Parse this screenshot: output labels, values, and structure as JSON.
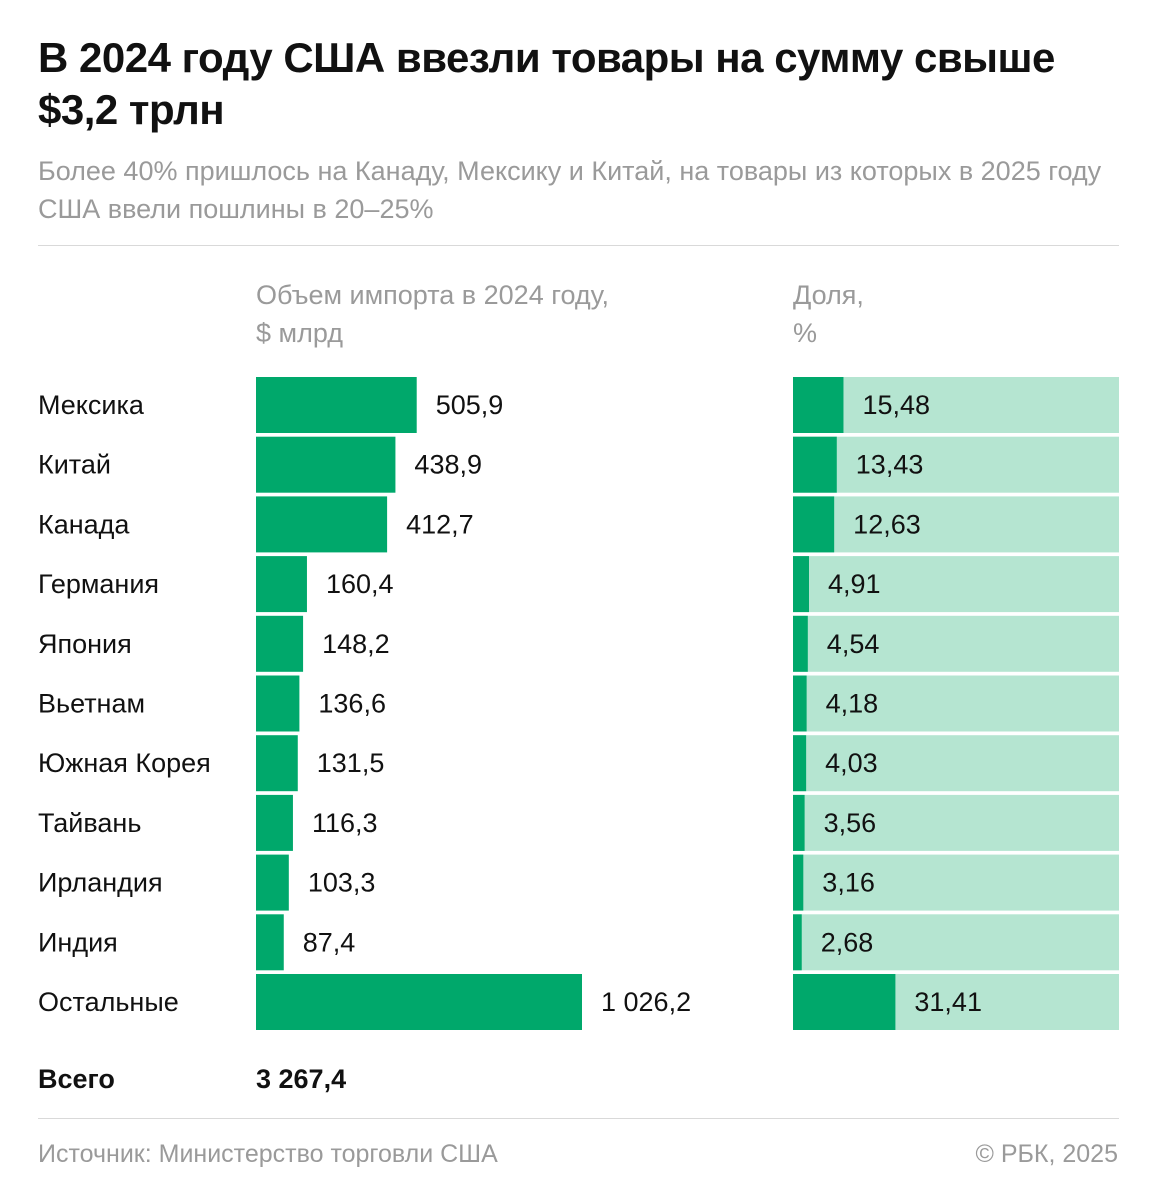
{
  "title": "В 2024 году США ввезли товары на сумму свыше $3,2 трлн",
  "subtitle": "Более 40% пришлось на Канаду, Мексику и Китай, на товары из которых в 2025 году США ввели пошлины в 20–25%",
  "columns": {
    "volume": "Объем импорта в 2024 году, $ млрд",
    "volume_line1": "Объем импорта в 2024 году,",
    "volume_line2": "$ млрд",
    "share": "Доля, %",
    "share_line1": "Доля,",
    "share_line2": "%"
  },
  "total": {
    "label": "Всего",
    "value": "3 267,4"
  },
  "footer": {
    "source": "Источник: Министерство торговли США",
    "copyright": "© РБК, 2025"
  },
  "colors": {
    "bar": "#00a86b",
    "bar_light": "#b5e5d1",
    "text": "#111111",
    "muted": "#9a9a9a"
  },
  "chart_data": {
    "type": "bar",
    "orientation": "horizontal",
    "categories": [
      "Мексика",
      "Китай",
      "Канада",
      "Германия",
      "Япония",
      "Вьетнам",
      "Южная Корея",
      "Тайвань",
      "Ирландия",
      "Индия",
      "Остальные"
    ],
    "series": [
      {
        "name": "Объем импорта в 2024 году, $ млрд",
        "values": [
          505.9,
          438.9,
          412.7,
          160.4,
          148.2,
          136.6,
          131.5,
          116.3,
          103.3,
          87.4,
          1026.2
        ],
        "labels": [
          "505,9",
          "438,9",
          "412,7",
          "160,4",
          "148,2",
          "136,6",
          "131,5",
          "116,3",
          "103,3",
          "87,4",
          "1 026,2"
        ]
      },
      {
        "name": "Доля, %",
        "values": [
          15.48,
          13.43,
          12.63,
          4.91,
          4.54,
          4.18,
          4.03,
          3.56,
          3.16,
          2.68,
          31.41
        ],
        "labels": [
          "15,48",
          "13,43",
          "12,63",
          "4,91",
          "4,54",
          "4,18",
          "4,03",
          "3,56",
          "3,16",
          "2,68",
          "31,41"
        ]
      }
    ],
    "xlim_volume": [
      0,
      1026.2
    ],
    "xlim_share": [
      0,
      100
    ],
    "title": "В 2024 году США ввезли товары на сумму свыше $3,2 трлн",
    "xlabel": "",
    "ylabel": "",
    "legend": "none",
    "grid": false
  }
}
